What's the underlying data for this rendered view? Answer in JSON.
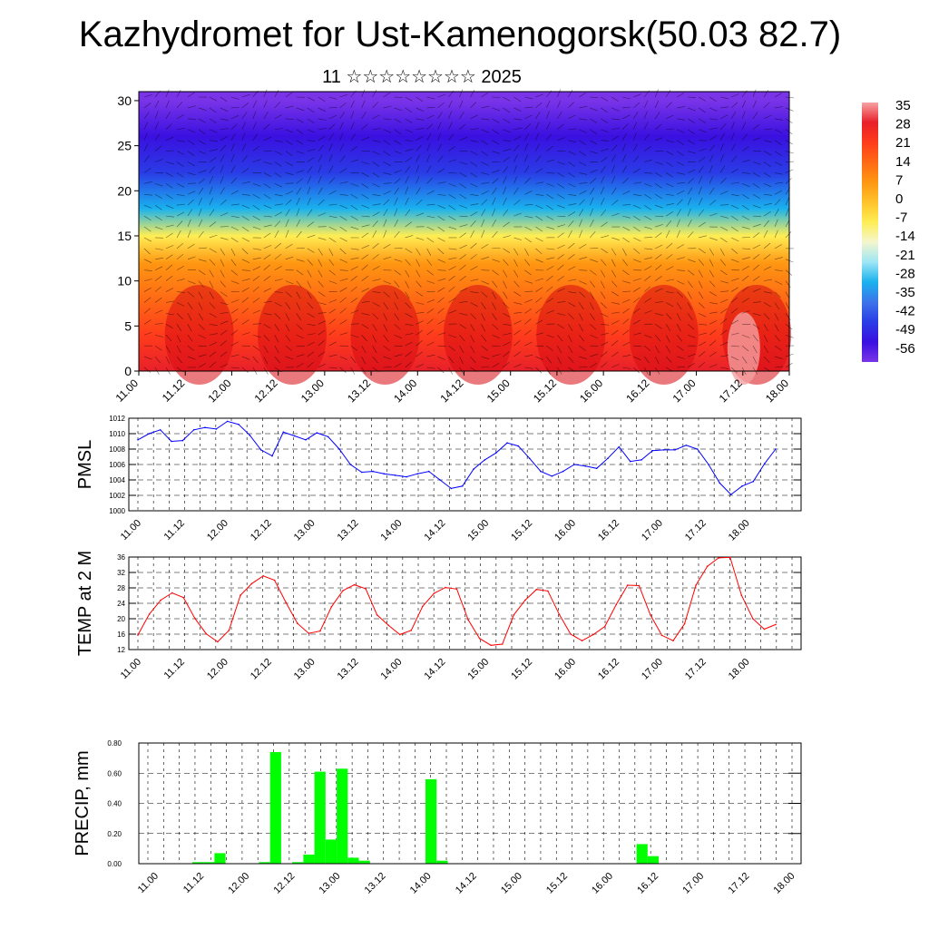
{
  "header": {
    "title": "Kazhydromet for Ust-Kamenogorsk(50.03 82.7)",
    "subtitle": "11 ☆☆☆☆☆☆☆☆ 2025"
  },
  "time_labels": [
    "11.00",
    "11.12",
    "12.00",
    "12.12",
    "13.00",
    "13.12",
    "14.00",
    "14.12",
    "15.00",
    "15.12",
    "16.00",
    "16.12",
    "17.00",
    "17.12",
    "18.00"
  ],
  "chart_data": [
    {
      "type": "heatmap",
      "title": "",
      "ylabel": "",
      "ylim": [
        0,
        31
      ],
      "y_ticks": [
        0,
        5,
        10,
        15,
        20,
        25,
        30
      ],
      "colorbar": {
        "labels": [
          "35",
          "28",
          "21",
          "14",
          "7",
          "0",
          "-7",
          "-14",
          "-21",
          "-28",
          "-35",
          "-42",
          "-49",
          "-56"
        ],
        "colors": [
          "#f7a3a3",
          "#e8202a",
          "#ff3c1c",
          "#ff6a14",
          "#ff9712",
          "#ffc32a",
          "#ffee55",
          "#f4f6cf",
          "#9ee6f5",
          "#1ab2ee",
          "#3c74ea",
          "#2a3ce6",
          "#3a10e0",
          "#7a34e8"
        ]
      },
      "temperature_profile": [
        {
          "height": 0,
          "value": 28
        },
        {
          "height": 4,
          "value": 22
        },
        {
          "height": 8,
          "value": 14
        },
        {
          "height": 12,
          "value": 5
        },
        {
          "height": 15,
          "value": -10
        },
        {
          "height": 18,
          "value": -28
        },
        {
          "height": 22,
          "value": -40
        },
        {
          "height": 26,
          "value": -50
        },
        {
          "height": 30,
          "value": -56
        }
      ]
    },
    {
      "type": "line",
      "title": "",
      "ylabel": "PMSL",
      "ylim": [
        1000,
        1012
      ],
      "y_ticks": [
        1000,
        1002,
        1004,
        1006,
        1008,
        1010,
        1012
      ],
      "color": "#0000ff",
      "series": [
        {
          "values": [
            1009.2,
            1010.0,
            1010.5,
            1009.0,
            1009.1,
            1010.5,
            1010.8,
            1010.6,
            1011.6,
            1011.2,
            1009.8,
            1007.9,
            1007.1,
            1010.2,
            1009.7,
            1009.2,
            1010.1,
            1009.6,
            1008.0,
            1006.0,
            1005.0,
            1005.1,
            1004.8,
            1004.6,
            1004.4,
            1004.8,
            1005.1,
            1004.0,
            1002.9,
            1003.2,
            1005.4,
            1006.6,
            1007.5,
            1008.8,
            1008.4,
            1006.8,
            1005.1,
            1004.5,
            1005.1,
            1006.0,
            1005.8,
            1005.5,
            1006.8,
            1008.3,
            1006.4,
            1006.6,
            1007.8,
            1007.9,
            1007.9,
            1008.5,
            1008.0,
            1006.0,
            1003.6,
            1002.1,
            1003.2,
            1003.8,
            1006.1,
            1008.0
          ]
        }
      ]
    },
    {
      "type": "line",
      "title": "",
      "ylabel": "TEMP at 2 M",
      "ylim": [
        12,
        36
      ],
      "y_ticks": [
        12,
        16,
        20,
        24,
        28,
        32,
        36
      ],
      "color": "#ff0000",
      "series": [
        {
          "values": [
            15.8,
            21.2,
            24.8,
            26.7,
            25.5,
            20.1,
            16.1,
            14.0,
            17.0,
            26.1,
            29.1,
            31.1,
            30.0,
            24.2,
            18.8,
            16.2,
            16.8,
            23.1,
            27.3,
            28.8,
            27.8,
            21.0,
            18.3,
            15.9,
            17.0,
            23.2,
            26.6,
            28.1,
            27.7,
            19.7,
            14.9,
            13.1,
            13.4,
            21.0,
            24.8,
            27.6,
            27.2,
            21.1,
            16.0,
            14.3,
            15.9,
            18.0,
            23.7,
            28.7,
            28.6,
            21.0,
            15.7,
            14.3,
            18.7,
            28.7,
            33.6,
            35.8,
            35.9,
            26.1,
            20.0,
            17.3,
            18.5
          ]
        }
      ]
    },
    {
      "type": "bar",
      "title": "",
      "ylabel": "PRECIP, mm",
      "ylim": [
        0,
        0.8
      ],
      "y_ticks": [
        "0.00",
        "0.20",
        "0.40",
        "0.60",
        "0.80"
      ],
      "color": "#00ff00",
      "series": [
        {
          "values": [
            0,
            0,
            0,
            0,
            0.01,
            0.01,
            0.07,
            0,
            0,
            0,
            0.01,
            0.74,
            0,
            0.01,
            0.06,
            0.61,
            0.16,
            0.63,
            0.04,
            0.02,
            0,
            0,
            0,
            0,
            0,
            0.56,
            0.02,
            0,
            0,
            0,
            0,
            0,
            0,
            0,
            0,
            0,
            0,
            0,
            0,
            0,
            0,
            0,
            0,
            0,
            0.13,
            0.05,
            0,
            0,
            0,
            0,
            0,
            0,
            0,
            0,
            0,
            0,
            0,
            0
          ]
        }
      ]
    }
  ]
}
